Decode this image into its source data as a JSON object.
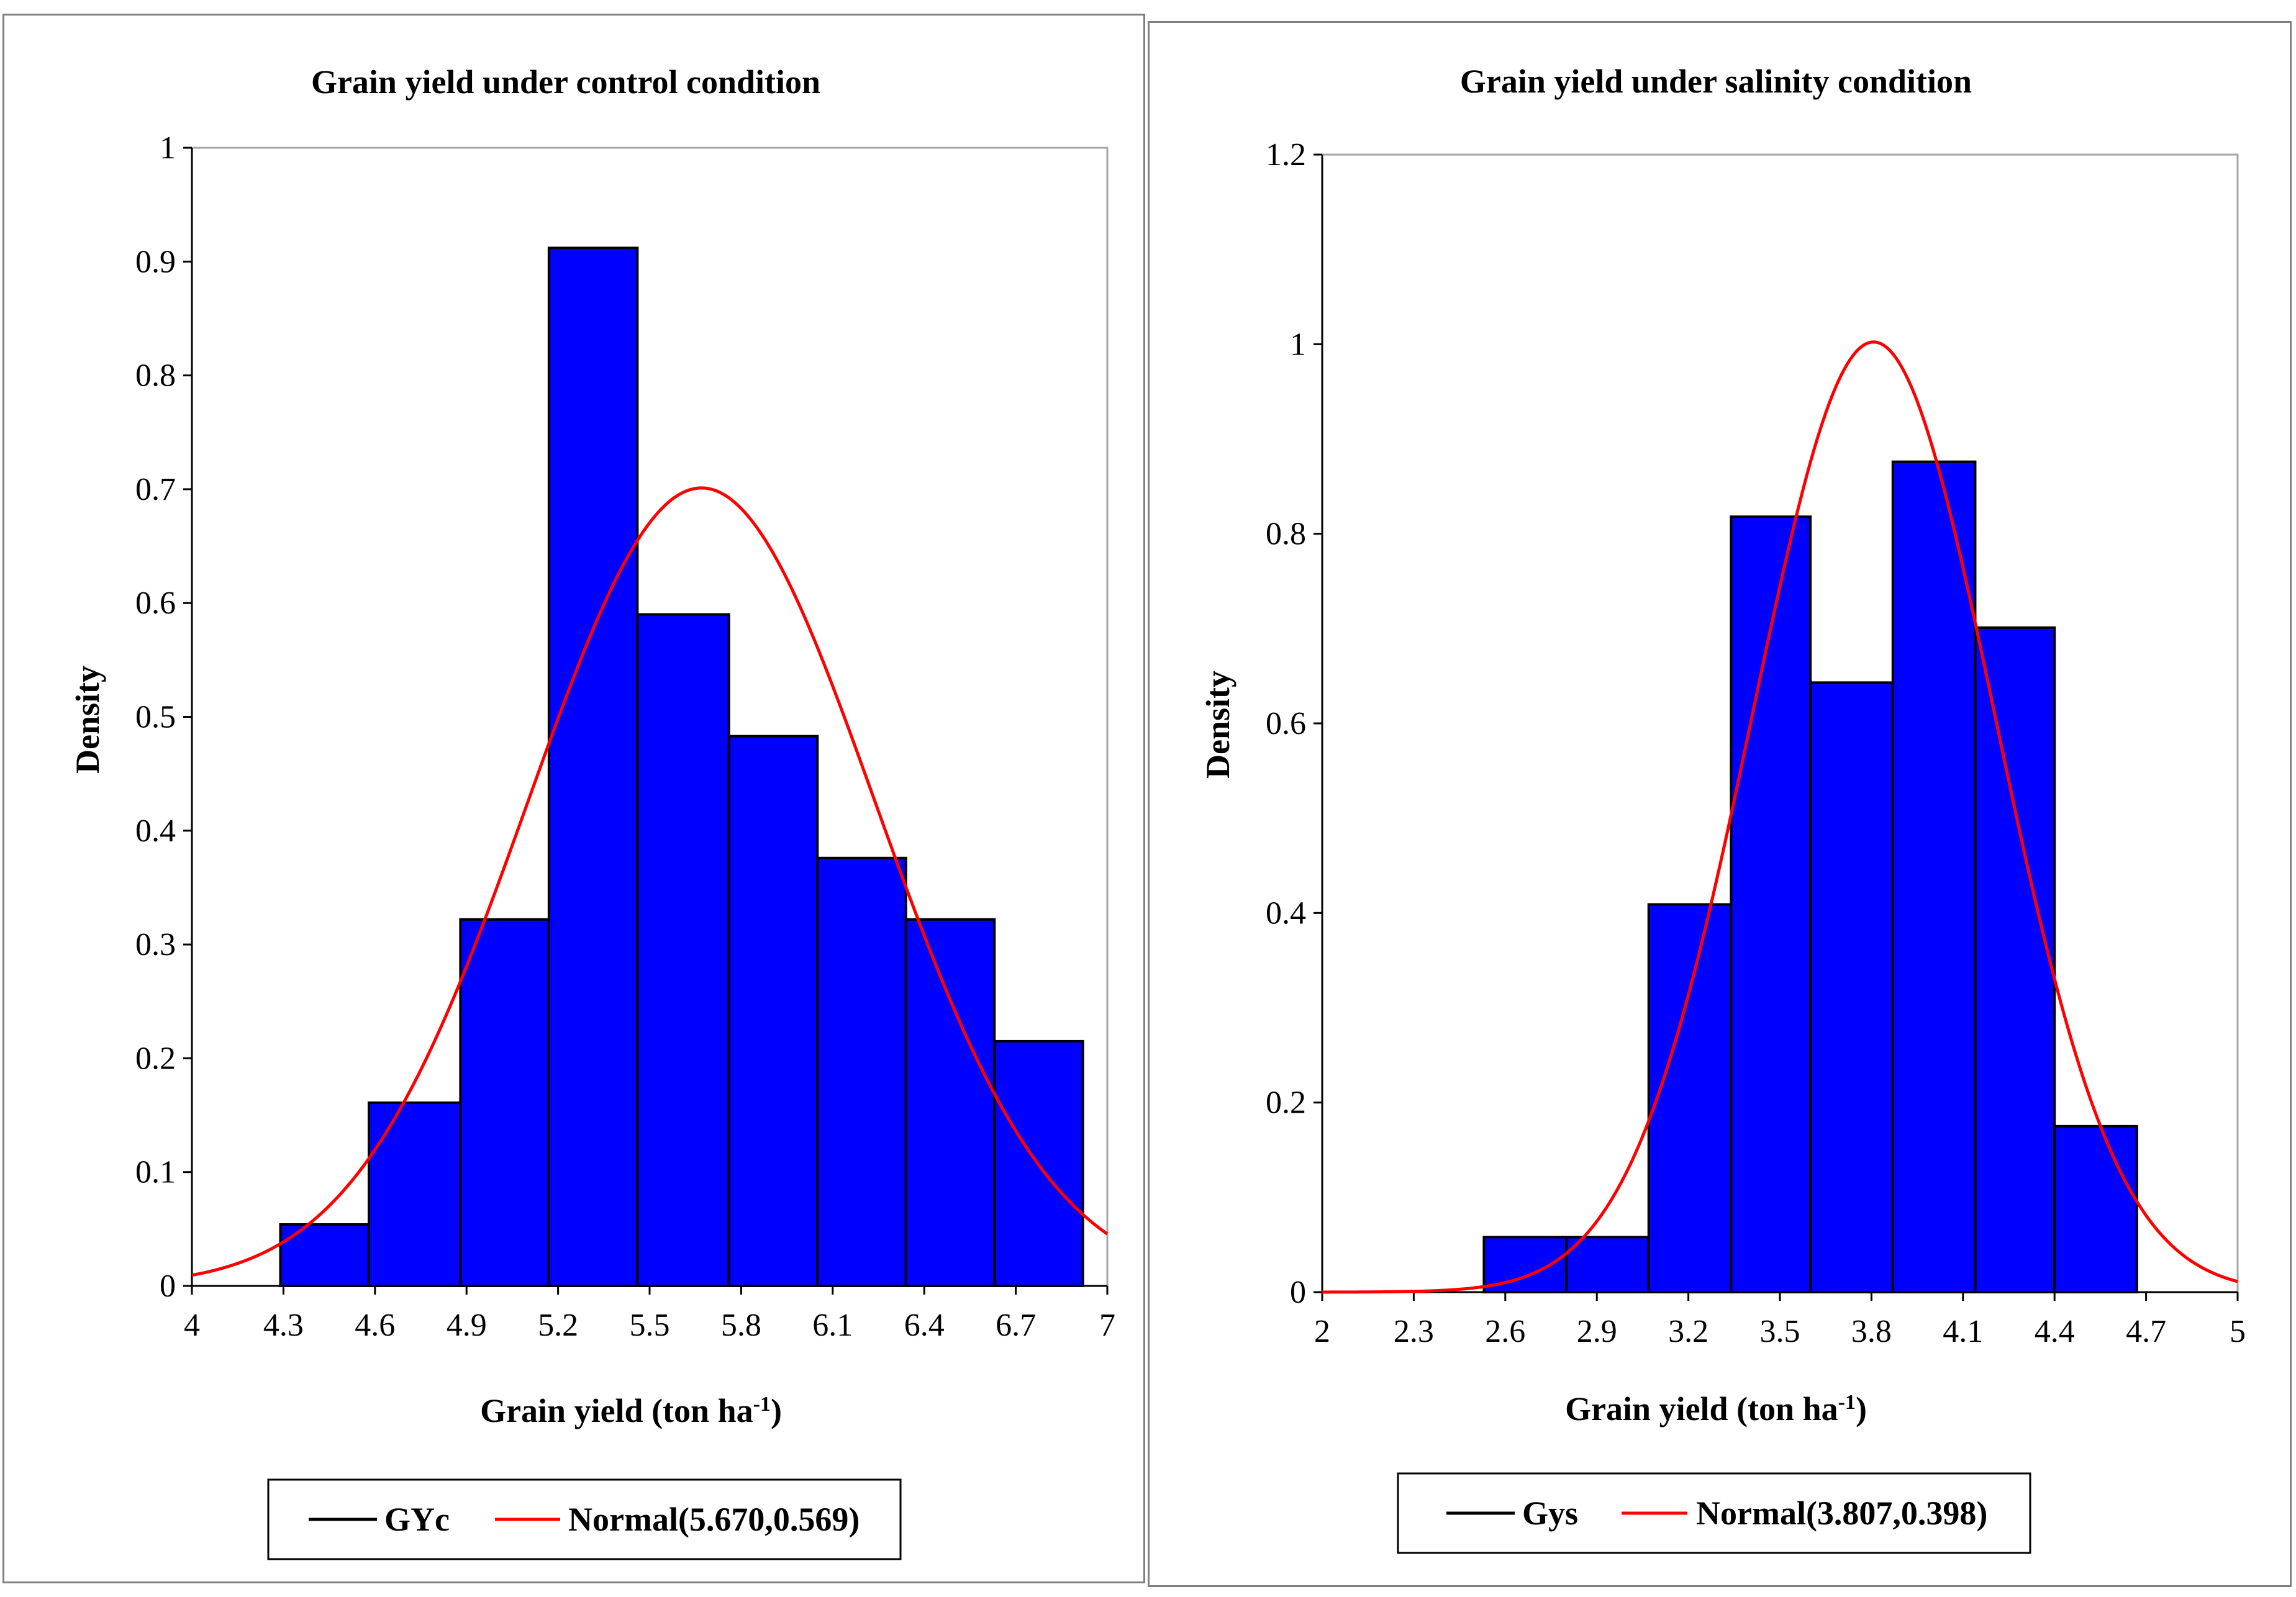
{
  "chart_data": [
    {
      "type": "bar",
      "title": "Grain yield under control condition",
      "xlabel": "Grain yield (ton ha",
      "xlabel_sup": "-1",
      "xlabel_end": ")",
      "ylabel": "Density",
      "xlim": [
        4,
        7
      ],
      "ylim": [
        0,
        1
      ],
      "x_ticks": [
        "4",
        "4.3",
        "4.6",
        "4.9",
        "5.2",
        "5.5",
        "5.8",
        "6.1",
        "6.4",
        "6.7",
        "7"
      ],
      "y_ticks": [
        "0",
        "0.1",
        "0.2",
        "0.3",
        "0.4",
        "0.5",
        "0.6",
        "0.7",
        "0.8",
        "0.9",
        "1"
      ],
      "bins": [
        {
          "x0": 4.29,
          "x1": 4.58,
          "density": 0.054
        },
        {
          "x0": 4.58,
          "x1": 4.88,
          "density": 0.161
        },
        {
          "x0": 4.88,
          "x1": 5.17,
          "density": 0.322
        },
        {
          "x0": 5.17,
          "x1": 5.46,
          "density": 0.912
        },
        {
          "x0": 5.46,
          "x1": 5.76,
          "density": 0.59
        },
        {
          "x0": 5.76,
          "x1": 6.05,
          "density": 0.483
        },
        {
          "x0": 6.05,
          "x1": 6.34,
          "density": 0.376
        },
        {
          "x0": 6.34,
          "x1": 6.63,
          "density": 0.322
        },
        {
          "x0": 6.63,
          "x1": 6.92,
          "density": 0.215
        }
      ],
      "normal": {
        "mean": 5.67,
        "sd": 0.569
      },
      "legend": [
        {
          "name": "GYc",
          "color": "#000000"
        },
        {
          "name": "Normal(5.670,0.569)",
          "color": "#ff0000"
        }
      ],
      "bar_color": "#0000ff",
      "curve_color": "#ff0000"
    },
    {
      "type": "bar",
      "title": "Grain yield under salinity condition",
      "xlabel": "Grain yield (ton ha",
      "xlabel_sup": "-1",
      "xlabel_end": ")",
      "ylabel": "Density",
      "xlim": [
        2,
        5
      ],
      "ylim": [
        0,
        1.2
      ],
      "x_ticks": [
        "2",
        "2.3",
        "2.6",
        "2.9",
        "3.2",
        "3.5",
        "3.8",
        "4.1",
        "4.4",
        "4.7",
        "5"
      ],
      "y_ticks": [
        "0",
        "0.2",
        "0.4",
        "0.6",
        "0.8",
        "1",
        "1.2"
      ],
      "bins": [
        {
          "x0": 2.53,
          "x1": 2.8,
          "density": 0.058
        },
        {
          "x0": 2.8,
          "x1": 3.07,
          "density": 0.058
        },
        {
          "x0": 3.07,
          "x1": 3.34,
          "density": 0.409
        },
        {
          "x0": 3.34,
          "x1": 3.6,
          "density": 0.818
        },
        {
          "x0": 3.6,
          "x1": 3.87,
          "density": 0.643
        },
        {
          "x0": 3.87,
          "x1": 4.14,
          "density": 0.876
        },
        {
          "x0": 4.14,
          "x1": 4.4,
          "density": 0.701
        },
        {
          "x0": 4.4,
          "x1": 4.67,
          "density": 0.175
        }
      ],
      "normal": {
        "mean": 3.807,
        "sd": 0.398
      },
      "legend": [
        {
          "name": "Gys",
          "color": "#000000"
        },
        {
          "name": "Normal(3.807,0.398)",
          "color": "#ff0000"
        }
      ],
      "bar_color": "#0000ff",
      "curve_color": "#ff0000"
    }
  ]
}
